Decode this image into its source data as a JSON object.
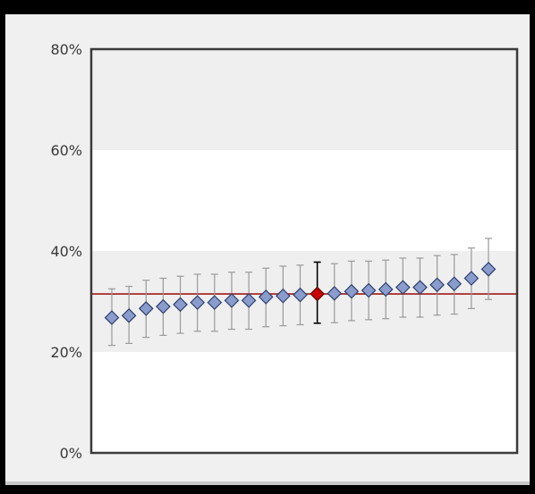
{
  "chart_data": {
    "type": "scatter",
    "title": "",
    "xlabel": "",
    "ylabel": "",
    "y_tick_labels": [
      "80%",
      "60%",
      "40%",
      "20%",
      "0%"
    ],
    "y_tick_values": [
      80,
      60,
      40,
      20,
      0
    ],
    "ylim": [
      0,
      80
    ],
    "x_tick_labels": [],
    "grid": "alternating horizontal bands",
    "reference_line": 31.5,
    "series": [
      {
        "style": "blue-diamond",
        "points": [
          {
            "value": 26.8,
            "low": 21.3,
            "high": 32.5
          },
          {
            "value": 27.2,
            "low": 21.7,
            "high": 33.0
          },
          {
            "value": 28.6,
            "low": 22.9,
            "high": 34.2
          },
          {
            "value": 29.0,
            "low": 23.3,
            "high": 34.6
          },
          {
            "value": 29.4,
            "low": 23.7,
            "high": 35.0
          },
          {
            "value": 29.8,
            "low": 24.1,
            "high": 35.4
          },
          {
            "value": 29.8,
            "low": 24.1,
            "high": 35.4
          },
          {
            "value": 30.2,
            "low": 24.5,
            "high": 35.8
          },
          {
            "value": 30.2,
            "low": 24.5,
            "high": 35.8
          },
          {
            "value": 30.9,
            "low": 25.0,
            "high": 36.6
          },
          {
            "value": 31.1,
            "low": 25.2,
            "high": 37.0
          },
          {
            "value": 31.3,
            "low": 25.4,
            "high": 37.2
          },
          {
            "value": 31.5,
            "low": 25.7,
            "high": 37.8,
            "highlight": true
          },
          {
            "value": 31.6,
            "low": 25.8,
            "high": 37.5
          },
          {
            "value": 32.0,
            "low": 26.2,
            "high": 38.0
          },
          {
            "value": 32.2,
            "low": 26.4,
            "high": 38.0
          },
          {
            "value": 32.4,
            "low": 26.6,
            "high": 38.2
          },
          {
            "value": 32.8,
            "low": 26.9,
            "high": 38.6
          },
          {
            "value": 32.8,
            "low": 26.9,
            "high": 38.6
          },
          {
            "value": 33.3,
            "low": 27.3,
            "high": 39.1
          },
          {
            "value": 33.5,
            "low": 27.5,
            "high": 39.3
          },
          {
            "value": 34.6,
            "low": 28.6,
            "high": 40.6
          },
          {
            "value": 36.4,
            "low": 30.4,
            "high": 42.5
          }
        ]
      }
    ]
  },
  "colors": {
    "marker": "#8a9ccc",
    "marker_stroke": "#2e3f70",
    "highlight": "#cc0000",
    "highlight_stroke": "#550000",
    "reference_line": "#a01818",
    "errorbar": "#9a9a9a",
    "highlight_errorbar": "#000000",
    "band": "#efefef",
    "plot_bg": "#ffffff",
    "axis": "#3a3a3a"
  }
}
